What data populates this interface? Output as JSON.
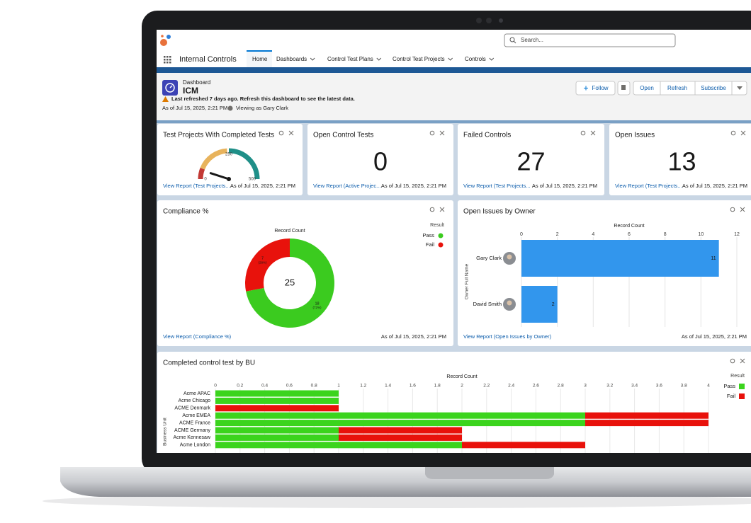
{
  "app": {
    "name": "Internal Controls",
    "search_placeholder": "Search...",
    "nav": [
      "Home",
      "Dashboards",
      "Control Test Plans",
      "Control Test Projects",
      "Controls"
    ]
  },
  "dashboard": {
    "type_label": "Dashboard",
    "title": "ICM",
    "warning": "Last refreshed 7 days ago. Refresh this dashboard to see the latest data.",
    "as_of": "As of Jul 15, 2025, 2:21 PM",
    "viewing": "Viewing as Gary Clark",
    "buttons": [
      "Follow",
      "Open",
      "Refresh",
      "Subscribe"
    ]
  },
  "widgets": [
    {
      "type": "gauge",
      "title": "Test Projects With Completed Tests",
      "value": 50,
      "range": [
        0,
        500
      ],
      "ticks": [
        0,
        250,
        500
      ],
      "link": "View Report (Test Projects...",
      "as_of": "As of Jul 15, 2025, 2:21 PM"
    },
    {
      "type": "metric",
      "title": "Open Control Tests",
      "value": 0,
      "color": "#b83c3a",
      "link": "View Report (Active Projec...",
      "as_of": "As of Jul 15, 2025, 2:21 PM"
    },
    {
      "type": "metric",
      "title": "Failed Controls",
      "value": 27,
      "color": "#b83c3a",
      "link": "View Report (Test Projects...",
      "as_of": "As of Jul 15, 2025, 2:21 PM"
    },
    {
      "type": "metric",
      "title": "Open Issues",
      "value": 13,
      "color": "#b83c3a",
      "link": "View Report (Test Projects...",
      "as_of": "As of Jul 15, 2025, 2:21 PM"
    },
    {
      "type": "donut",
      "title": "Compliance %",
      "subtitle": "Record Count",
      "total": 25,
      "legend_title": "Result",
      "categories": [
        "Pass",
        "Fail"
      ],
      "values": [
        18,
        7
      ],
      "percent_labels": [
        "(72%)",
        "(28%)"
      ],
      "colors": [
        "#3bcb1f",
        "#e8120c"
      ],
      "link": "View Report (Compliance %)",
      "as_of": "As of Jul 15, 2025, 2:21 PM"
    },
    {
      "type": "hbar",
      "title": "Open Issues by Owner",
      "x_label": "Record Count",
      "y_label": "Owner Full Name",
      "categories": [
        "Gary Clark",
        "David Smith"
      ],
      "values": [
        11,
        2
      ],
      "color": "#3296ed",
      "xlim": [
        0,
        12
      ],
      "xticks": [
        0,
        2,
        4,
        6,
        8,
        10,
        12
      ],
      "grid": true,
      "link": "View Report (Open Issues by Owner)",
      "as_of": "As of Jul 15, 2025, 2:21 PM"
    },
    {
      "type": "stacked_hbar",
      "title": "Completed control test by BU",
      "x_label": "Record Count",
      "y_label": "Business Unit",
      "legend_title": "Result",
      "categories": [
        "Acme APAC",
        "Acme Chicago",
        "ACME Denmark",
        "Acme EMEA",
        "ACME France",
        "ACME Germany",
        "Acme Kennesaw",
        "Acme London"
      ],
      "series": [
        {
          "name": "Pass",
          "color": "#3bd41d",
          "values": [
            1,
            1,
            null,
            3,
            3,
            1,
            1,
            2
          ]
        },
        {
          "name": "Fail",
          "color": "#e8110b",
          "values": [
            null,
            null,
            1,
            1,
            1,
            1,
            1,
            1
          ]
        }
      ],
      "xlim": [
        0,
        4
      ],
      "xticks": [
        0,
        0.2,
        0.4,
        0.6,
        0.8,
        1,
        1.2,
        1.4,
        1.6,
        1.8,
        2,
        2.2,
        2.4,
        2.6,
        2.8,
        3,
        3.2,
        3.4,
        3.6,
        3.8,
        4
      ],
      "grid": true
    }
  ]
}
